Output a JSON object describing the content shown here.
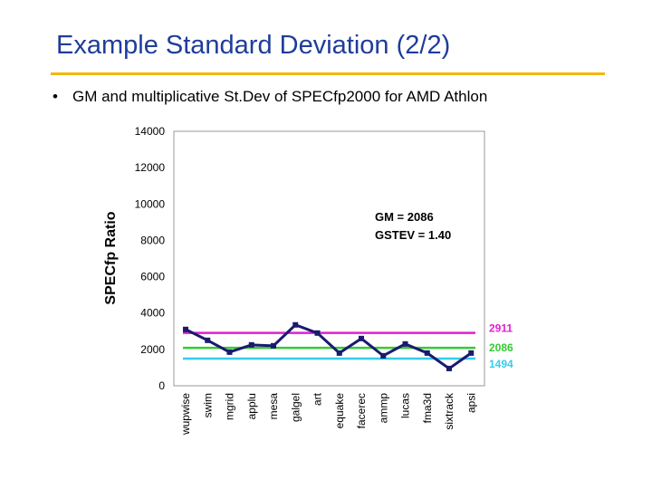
{
  "slide": {
    "title": "Example Standard Deviation (2/2)",
    "bullet": "GM and multiplicative St.Dev of SPECfp2000 for AMD Athlon",
    "bullet_symbol": "•",
    "accent_color": "#f2b705",
    "title_color": "#1f3d99"
  },
  "chart_data": {
    "type": "line",
    "title": "",
    "xlabel": "",
    "ylabel": "SPECfp Ratio",
    "ylim": [
      0,
      14000
    ],
    "yticks": [
      0,
      2000,
      4000,
      6000,
      8000,
      10000,
      12000,
      14000
    ],
    "grid": false,
    "categories": [
      "wupwise",
      "swim",
      "mgrid",
      "applu",
      "mesa",
      "galgel",
      "art",
      "equake",
      "facerec",
      "ammp",
      "lucas",
      "fma3d",
      "sixtrack",
      "apsi"
    ],
    "series": [
      {
        "values": [
          3100,
          2500,
          1850,
          2250,
          2200,
          3350,
          2900,
          1800,
          2600,
          1650,
          2300,
          1800,
          950,
          1800
        ],
        "color": "#1a1a6e"
      }
    ],
    "reference_lines": [
      {
        "value": 2911,
        "label": "2911",
        "color": "#e020d0"
      },
      {
        "value": 2086,
        "label": "2086",
        "color": "#33cc33"
      },
      {
        "value": 1494,
        "label": "1494",
        "color": "#33ccee"
      }
    ],
    "annotations": [
      "GM = 2086",
      "GSTEV = 1.40"
    ]
  }
}
